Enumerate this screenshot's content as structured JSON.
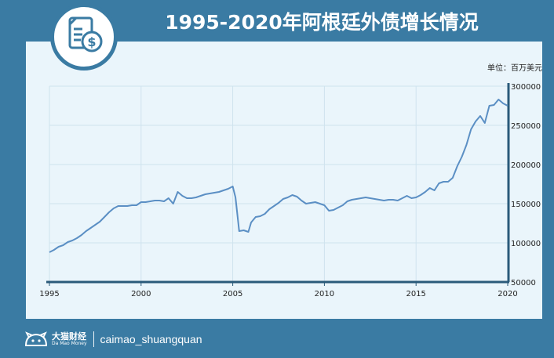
{
  "header": {
    "title": "1995-2020年阿根廷外债增长情况",
    "badge_icon": "document-dollar-icon"
  },
  "footer": {
    "brand_cn": "大猫财经",
    "brand_en": "Da Mao Money",
    "handle": "caimao_shuangquan",
    "logo_icon": "cat-logo-icon"
  },
  "colors": {
    "background": "#3a7ba3",
    "panel": "#eaf5fb",
    "line": "#5b8fc4",
    "axis": "#2a5a7a"
  },
  "chart_data": {
    "type": "line",
    "unit_label": "单位：百万美元",
    "xlim": [
      1995,
      2020
    ],
    "ylim": [
      50000,
      300000
    ],
    "x_ticks": [
      1995,
      2000,
      2005,
      2010,
      2015,
      2020
    ],
    "y_ticks": [
      50000,
      100000,
      150000,
      200000,
      250000,
      300000
    ],
    "y_axis_position": "right",
    "grid": true,
    "series": [
      {
        "x": [
          1995.0,
          1995.25,
          1995.5,
          1995.75,
          1996.0,
          1996.25,
          1996.5,
          1996.75,
          1997.0,
          1997.25,
          1997.5,
          1997.75,
          1998.0,
          1998.25,
          1998.5,
          1998.75,
          1999.0,
          1999.25,
          1999.5,
          1999.75,
          2000.0,
          2000.25,
          2000.5,
          2000.75,
          2001.0,
          2001.25,
          2001.5,
          2001.75,
          2002.0,
          2002.25,
          2002.5,
          2002.75,
          2003.0,
          2003.25,
          2003.5,
          2003.75,
          2004.0,
          2004.25,
          2004.5,
          2004.75,
          2005.0,
          2005.15,
          2005.35,
          2005.6,
          2005.85,
          2006.0,
          2006.25,
          2006.5,
          2006.75,
          2007.0,
          2007.25,
          2007.5,
          2007.75,
          2008.0,
          2008.25,
          2008.5,
          2008.75,
          2009.0,
          2009.25,
          2009.5,
          2009.75,
          2010.0,
          2010.25,
          2010.5,
          2010.75,
          2011.0,
          2011.25,
          2011.5,
          2011.75,
          2012.0,
          2012.25,
          2012.5,
          2012.75,
          2013.0,
          2013.25,
          2013.5,
          2013.75,
          2014.0,
          2014.25,
          2014.5,
          2014.75,
          2015.0,
          2015.25,
          2015.5,
          2015.75,
          2016.0,
          2016.25,
          2016.5,
          2016.75,
          2017.0,
          2017.25,
          2017.5,
          2017.75,
          2018.0,
          2018.25,
          2018.5,
          2018.75,
          2019.0,
          2019.25,
          2019.5,
          2019.75,
          2020.0
        ],
        "y": [
          88000,
          91000,
          95000,
          97000,
          101000,
          103000,
          106000,
          110000,
          115000,
          119000,
          123000,
          127000,
          133000,
          139000,
          144000,
          147000,
          147000,
          147000,
          148000,
          148000,
          152000,
          152000,
          153000,
          154000,
          154000,
          153000,
          157000,
          150000,
          165000,
          160000,
          157000,
          157000,
          158000,
          160000,
          162000,
          163000,
          164000,
          165000,
          167000,
          169000,
          172000,
          158000,
          115000,
          116000,
          114000,
          126000,
          133000,
          134000,
          137000,
          143000,
          147000,
          151000,
          156000,
          158000,
          161000,
          159000,
          154000,
          150000,
          151000,
          152000,
          150000,
          148000,
          141000,
          142000,
          145000,
          148000,
          153000,
          155000,
          156000,
          157000,
          158000,
          157000,
          156000,
          155000,
          154000,
          155000,
          155000,
          154000,
          157000,
          160000,
          157000,
          158000,
          161000,
          165000,
          170000,
          167000,
          176000,
          178000,
          178000,
          183000,
          198000,
          210000,
          225000,
          245000,
          255000,
          262000,
          253000,
          275000,
          276000,
          283000,
          278000,
          275000
        ]
      }
    ]
  }
}
